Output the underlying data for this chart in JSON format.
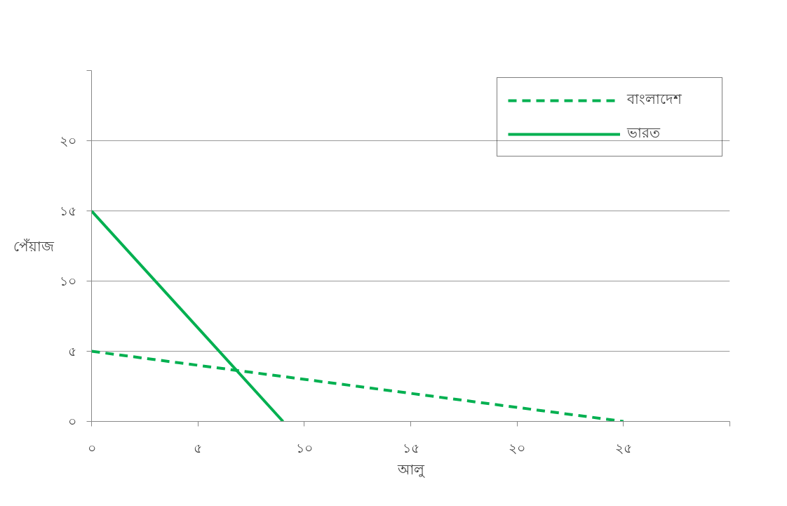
{
  "chart_data": {
    "type": "line",
    "xlabel": "আলু",
    "ylabel": "পেঁয়াজ",
    "xlim": [
      0,
      30
    ],
    "ylim": [
      0,
      25
    ],
    "xticks": [
      {
        "value": 0,
        "label": "০"
      },
      {
        "value": 5,
        "label": "৫"
      },
      {
        "value": 10,
        "label": "১০"
      },
      {
        "value": 15,
        "label": "১৫"
      },
      {
        "value": 20,
        "label": "২০"
      },
      {
        "value": 25,
        "label": "২৫"
      },
      {
        "value": 30,
        "label": null
      }
    ],
    "yticks": [
      {
        "value": 0,
        "label": "০"
      },
      {
        "value": 5,
        "label": "৫"
      },
      {
        "value": 10,
        "label": "১০"
      },
      {
        "value": 15,
        "label": "১৫"
      },
      {
        "value": 20,
        "label": "২০"
      },
      {
        "value": 25,
        "label": null
      }
    ],
    "series": [
      {
        "name": "বাংলাদেশ",
        "color": "#00b050",
        "line_style": "dashed",
        "x": [
          0,
          25
        ],
        "values": [
          5,
          0
        ]
      },
      {
        "name": "ভারত",
        "color": "#00b050",
        "line_style": "solid",
        "x": [
          0,
          9
        ],
        "values": [
          15,
          0
        ]
      }
    ],
    "grid": "y",
    "legend": "top right",
    "marker": "none"
  }
}
